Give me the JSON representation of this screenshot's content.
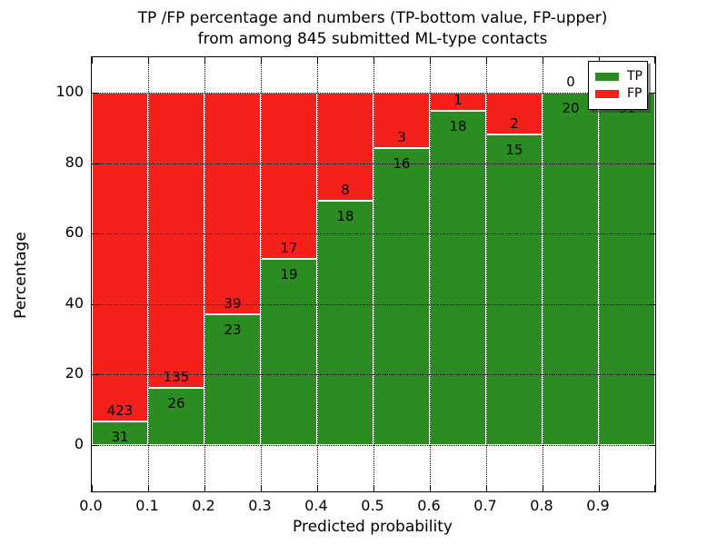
{
  "title": {
    "line1": "TP /FP percentage and numbers (TP-bottom value, FP-upper)",
    "line2": "from among 845 submitted ML-type contacts"
  },
  "axes": {
    "xlabel": "Predicted probability",
    "ylabel": "Percentage",
    "x_tick_labels": [
      "0.0",
      "0.1",
      "0.2",
      "0.3",
      "0.4",
      "0.5",
      "0.6",
      "0.7",
      "0.8",
      "0.9"
    ],
    "y_tick_labels": [
      "0",
      "20",
      "40",
      "60",
      "80",
      "100"
    ]
  },
  "legend": {
    "items": [
      {
        "label": "TP",
        "color": "#2a8c21"
      },
      {
        "label": "FP",
        "color": "#f5201a"
      }
    ]
  },
  "chart_data": {
    "type": "bar",
    "stacked": true,
    "normalized_to_percent": true,
    "title": "TP /FP percentage and numbers (TP-bottom value, FP-upper) from among 845 submitted ML-type contacts",
    "xlabel": "Predicted probability",
    "ylabel": "Percentage",
    "total_contacts": 845,
    "categories": [
      "0.0-0.1",
      "0.1-0.2",
      "0.2-0.3",
      "0.3-0.4",
      "0.4-0.5",
      "0.5-0.6",
      "0.6-0.7",
      "0.7-0.8",
      "0.8-0.9",
      "0.9-1.0"
    ],
    "bin_starts": [
      0.0,
      0.1,
      0.2,
      0.3,
      0.4,
      0.5,
      0.6,
      0.7,
      0.8,
      0.9
    ],
    "series": [
      {
        "name": "TP",
        "color": "#2a8c21",
        "counts": [
          31,
          26,
          23,
          19,
          18,
          16,
          18,
          15,
          20,
          31
        ]
      },
      {
        "name": "FP",
        "color": "#f5201a",
        "counts": [
          423,
          135,
          39,
          17,
          8,
          3,
          1,
          2,
          0,
          0
        ]
      }
    ],
    "bar_height_rule": "TP% = TP/(TP+FP)*100 stacked below FP% to total 100",
    "xlim": [
      0.0,
      1.0
    ],
    "ylim": [
      -13,
      110
    ],
    "grid": "dotted black at x ticks and y ticks",
    "legend_position": "upper right"
  }
}
